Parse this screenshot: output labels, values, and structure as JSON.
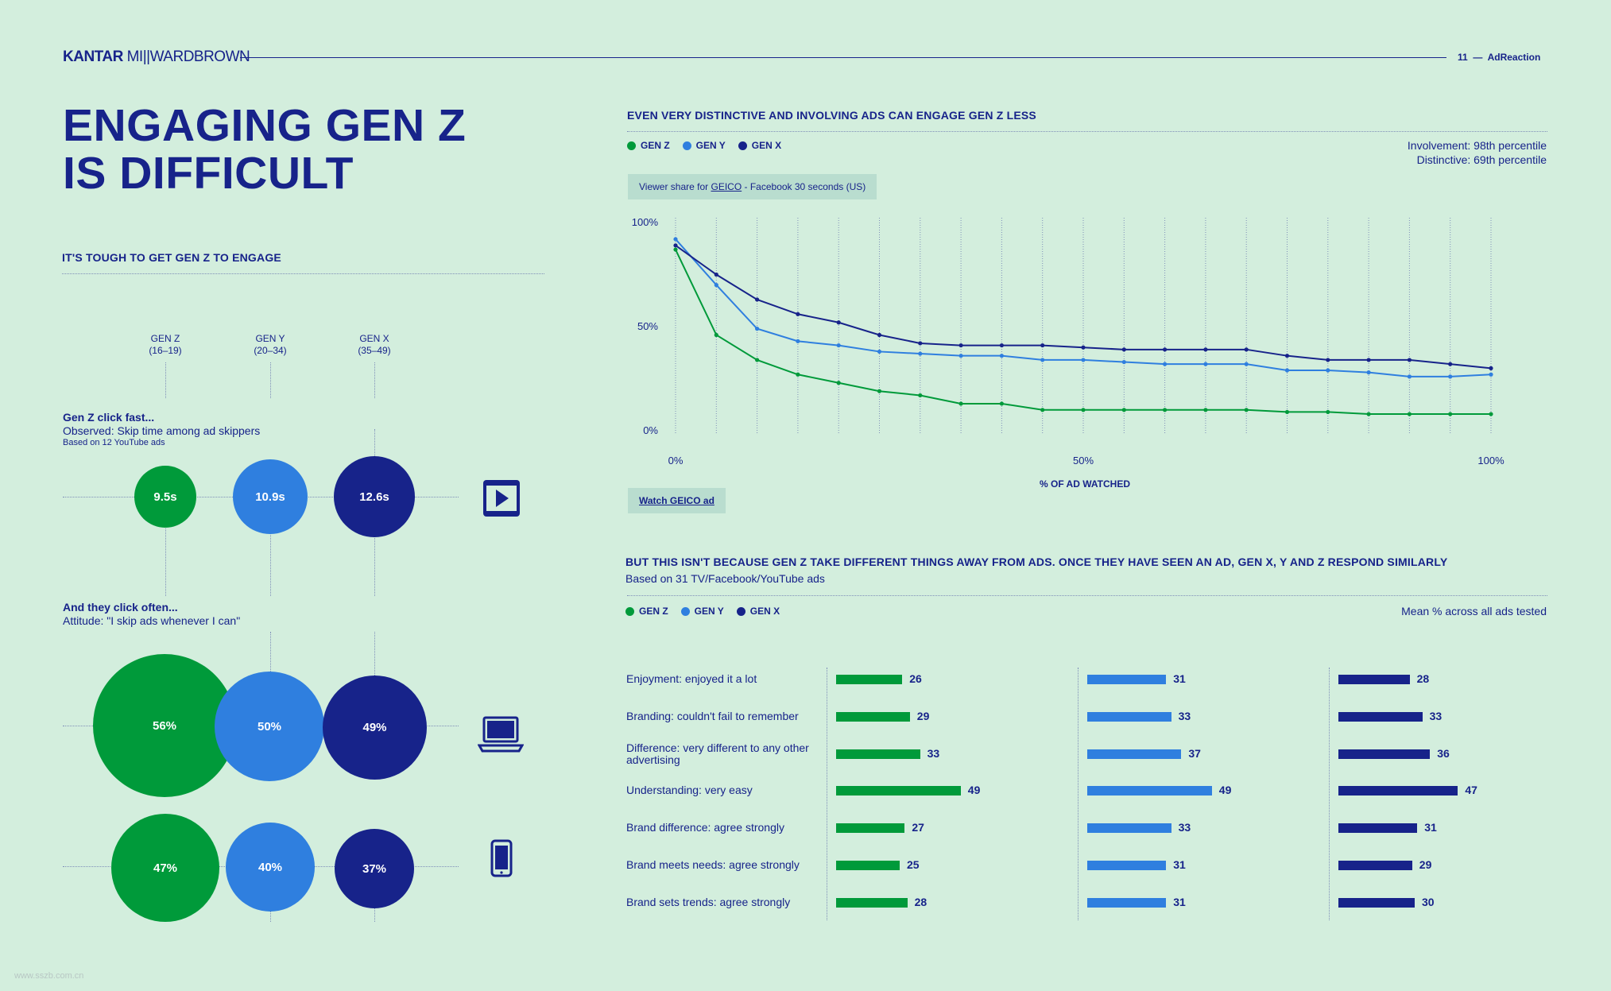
{
  "header": {
    "brand_bold": "KANTAR",
    "brand_thin": "MI||WARDBROWN",
    "page_number": "11",
    "section": "AdReaction"
  },
  "title": {
    "line1": "ENGAGING GEN Z",
    "line2": "IS DIFFICULT"
  },
  "left": {
    "section_title": "IT'S TOUGH TO GET GEN Z TO ENGAGE",
    "generations": [
      {
        "name": "GEN Z",
        "ages": "(16–19)",
        "color": "#009a3a"
      },
      {
        "name": "GEN Y",
        "ages": "(20–34)",
        "color": "#2f7fdf"
      },
      {
        "name": "GEN X",
        "ages": "(35–49)",
        "color": "#17238a"
      }
    ],
    "click_fast": {
      "heading": "Gen Z click fast...",
      "sub": "Observed: Skip time among ad skippers",
      "note": "Based on 12 YouTube ads",
      "values": [
        "9.5s",
        "10.9s",
        "12.6s"
      ],
      "numbers": [
        9.5,
        10.9,
        12.6
      ],
      "icon": "video-play-icon"
    },
    "click_often": {
      "heading": "And they click often...",
      "sub": "Attitude: \"I skip ads whenever I can\"",
      "rows": [
        {
          "device": "laptop",
          "icon": "laptop-icon",
          "values": [
            "56%",
            "50%",
            "49%"
          ],
          "numbers": [
            56,
            50,
            49
          ]
        },
        {
          "device": "mobile",
          "icon": "smartphone-icon",
          "values": [
            "47%",
            "40%",
            "37%"
          ],
          "numbers": [
            47,
            40,
            37
          ]
        }
      ]
    }
  },
  "chart_data": [
    {
      "type": "line",
      "title": "EVEN VERY DISTINCTIVE AND INVOLVING ADS CAN ENGAGE GEN Z LESS",
      "subtitle": "Viewer share for GEICO - Facebook 30 seconds (US)",
      "subtitle_prefix": "Viewer share for",
      "subtitle_link": "GEICO",
      "subtitle_suffix": "- Facebook 30 seconds (US)",
      "annotations": [
        "Involvement: 98th percentile",
        "Distinctive: 69th percentile"
      ],
      "xlabel": "% OF AD WATCHED",
      "x_ticks": [
        "0%",
        "50%",
        "100%"
      ],
      "y_ticks": [
        "100%",
        "50%",
        "0%"
      ],
      "xlim": [
        0,
        100
      ],
      "ylim": [
        0,
        100
      ],
      "grid": "vertical dotted",
      "legend_position": "top-left",
      "link_button": "Watch GEICO ad",
      "x": [
        0,
        5,
        10,
        15,
        20,
        25,
        30,
        35,
        40,
        45,
        50,
        55,
        60,
        65,
        70,
        75,
        80,
        85,
        90,
        95,
        100
      ],
      "series": [
        {
          "name": "GEN Z",
          "color": "#009a3a",
          "values": [
            87,
            46,
            34,
            27,
            23,
            19,
            17,
            13,
            13,
            10,
            10,
            10,
            10,
            10,
            10,
            9,
            9,
            8,
            8,
            8,
            8
          ]
        },
        {
          "name": "GEN Y",
          "color": "#2f7fdf",
          "values": [
            92,
            70,
            49,
            43,
            41,
            38,
            37,
            36,
            36,
            34,
            34,
            33,
            32,
            32,
            32,
            29,
            29,
            28,
            26,
            26,
            27
          ]
        },
        {
          "name": "GEN X",
          "color": "#17238a",
          "values": [
            89,
            75,
            63,
            56,
            52,
            46,
            42,
            41,
            41,
            41,
            40,
            39,
            39,
            39,
            39,
            36,
            34,
            34,
            34,
            32,
            30
          ]
        }
      ]
    },
    {
      "type": "bar",
      "title": "BUT THIS ISN'T BECAUSE GEN Z TAKE DIFFERENT THINGS AWAY FROM ADS. ONCE THEY HAVE SEEN AN AD, GEN X, Y AND Z RESPOND SIMILARLY",
      "subtitle": "Based on 31 TV/Facebook/YouTube ads",
      "note": "Mean % across all ads tested",
      "legend_position": "top-left",
      "categories": [
        "Enjoyment: enjoyed it a lot",
        "Branding: couldn't fail to remember",
        "Difference: very different to any other advertising",
        "Understanding: very easy",
        "Brand difference: agree strongly",
        "Brand meets needs: agree strongly",
        "Brand sets trends: agree strongly"
      ],
      "series": [
        {
          "name": "GEN Z",
          "color": "#009a3a",
          "values": [
            26,
            29,
            33,
            49,
            27,
            25,
            28
          ]
        },
        {
          "name": "GEN Y",
          "color": "#2f7fdf",
          "values": [
            31,
            33,
            37,
            49,
            33,
            31,
            31
          ]
        },
        {
          "name": "GEN X",
          "color": "#17238a",
          "values": [
            28,
            33,
            36,
            47,
            31,
            29,
            30
          ]
        }
      ]
    }
  ],
  "watermark": "www.sszb.com.cn"
}
